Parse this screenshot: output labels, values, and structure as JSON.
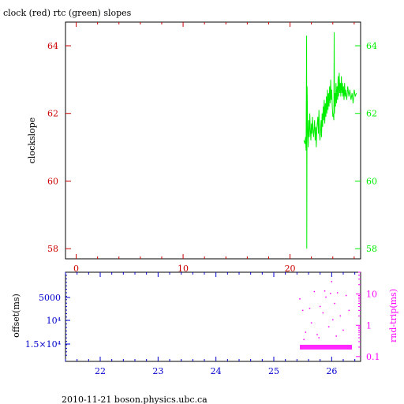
{
  "title": "clock (red) rtc (green) slopes",
  "footer": "2010-11-21 boson.physics.ubc.ca",
  "colors": {
    "frame": "#000000",
    "clock_axis": "#cc0000",
    "rtc_axis": "#00ee00",
    "offset_axis": "#0000cc",
    "rndtrip_axis": "#ff00ff",
    "rtc_series": "#00ee00",
    "rndtrip_points": "#ff00ff"
  },
  "chart_data": [
    {
      "type": "line",
      "title": "clock (red) rtc (green) slopes",
      "ylabel": "clockslope",
      "xlim": [
        -1,
        26.6
      ],
      "ylim": [
        57.7,
        64.7
      ],
      "x_ticks": [
        0,
        10,
        20
      ],
      "x_minor_step": 2,
      "y_ticks_left": [
        58,
        60,
        62,
        64
      ],
      "y_ticks_right": [
        58,
        60,
        62,
        64
      ],
      "grid": false,
      "series": [
        {
          "name": "rtc",
          "points": [
            [
              21.3,
              61.2
            ],
            [
              21.4,
              61.1
            ],
            [
              21.45,
              61.3
            ],
            [
              21.5,
              60.9
            ],
            [
              21.55,
              64.3
            ],
            [
              21.57,
              58.0
            ],
            [
              21.6,
              62.8
            ],
            [
              21.65,
              61.6
            ],
            [
              21.7,
              61.0
            ],
            [
              21.75,
              61.8
            ],
            [
              21.8,
              61.3
            ],
            [
              21.85,
              62.0
            ],
            [
              21.9,
              61.5
            ],
            [
              21.95,
              61.2
            ],
            [
              22.0,
              61.7
            ],
            [
              22.05,
              61.4
            ],
            [
              22.1,
              61.9
            ],
            [
              22.15,
              61.5
            ],
            [
              22.2,
              61.3
            ],
            [
              22.3,
              61.8
            ],
            [
              22.35,
              61.2
            ],
            [
              22.4,
              61.6
            ],
            [
              22.45,
              61.0
            ],
            [
              22.5,
              61.5
            ],
            [
              22.6,
              61.9
            ],
            [
              22.65,
              61.4
            ],
            [
              22.7,
              62.1
            ],
            [
              22.75,
              61.5
            ],
            [
              22.8,
              61.2
            ],
            [
              22.9,
              61.8
            ],
            [
              22.95,
              61.3
            ],
            [
              23.0,
              62.0
            ],
            [
              23.05,
              61.6
            ],
            [
              23.1,
              62.2
            ],
            [
              23.15,
              61.8
            ],
            [
              23.2,
              62.4
            ],
            [
              23.25,
              61.7
            ],
            [
              23.3,
              62.3
            ],
            [
              23.35,
              61.9
            ],
            [
              23.4,
              62.5
            ],
            [
              23.45,
              62.0
            ],
            [
              23.5,
              62.7
            ],
            [
              23.55,
              62.1
            ],
            [
              23.6,
              62.6
            ],
            [
              23.65,
              62.2
            ],
            [
              23.7,
              62.8
            ],
            [
              23.75,
              62.3
            ],
            [
              23.8,
              63.0
            ],
            [
              23.85,
              62.4
            ],
            [
              23.9,
              62.7
            ],
            [
              23.95,
              62.2
            ],
            [
              24.0,
              61.9
            ],
            [
              24.05,
              62.0
            ],
            [
              24.1,
              61.8
            ],
            [
              24.13,
              64.4
            ],
            [
              24.16,
              62.0
            ],
            [
              24.2,
              62.6
            ],
            [
              24.25,
              62.2
            ],
            [
              24.3,
              62.9
            ],
            [
              24.35,
              62.3
            ],
            [
              24.4,
              62.8
            ],
            [
              24.45,
              62.4
            ],
            [
              24.5,
              63.1
            ],
            [
              24.55,
              62.5
            ],
            [
              24.6,
              63.2
            ],
            [
              24.65,
              62.6
            ],
            [
              24.7,
              62.9
            ],
            [
              24.75,
              62.5
            ],
            [
              24.8,
              63.1
            ],
            [
              24.85,
              62.6
            ],
            [
              24.9,
              62.9
            ],
            [
              24.95,
              62.5
            ],
            [
              25.0,
              62.8
            ],
            [
              25.05,
              62.4
            ],
            [
              25.1,
              62.9
            ],
            [
              25.15,
              62.5
            ],
            [
              25.2,
              62.7
            ],
            [
              25.3,
              62.4
            ],
            [
              25.4,
              62.8
            ],
            [
              25.5,
              62.5
            ],
            [
              25.6,
              62.7
            ],
            [
              25.7,
              62.4
            ],
            [
              25.8,
              62.6
            ],
            [
              25.9,
              62.3
            ],
            [
              26.0,
              62.7
            ],
            [
              26.1,
              62.5
            ],
            [
              26.2,
              62.6
            ]
          ]
        }
      ]
    },
    {
      "type": "scatter",
      "ylabel_left": "offset(ms)",
      "ylabel_right": "rnd-trip(ms)",
      "xlim": [
        21.4,
        26.5
      ],
      "x_ticks": [
        22,
        23,
        24,
        25,
        26
      ],
      "x_minor_step": 0.2,
      "y_ticks_left": [
        "5000",
        "10⁴",
        "1.5×10⁴"
      ],
      "y_ticks_right": [
        "10",
        "1",
        "0.1"
      ],
      "y_right_scale": "log",
      "y_right_lim": [
        0.07,
        50
      ],
      "y_right_tick_values": [
        10,
        1,
        0.1
      ],
      "series": [
        {
          "name": "rnd-trip",
          "band": {
            "x_start": 25.45,
            "x_end": 26.35,
            "y": 0.2
          },
          "scattered_points": [
            [
              25.45,
              7.0
            ],
            [
              25.5,
              3.0
            ],
            [
              25.55,
              0.6
            ],
            [
              25.62,
              3.5
            ],
            [
              25.65,
              1.2
            ],
            [
              25.7,
              12.0
            ],
            [
              25.75,
              0.5
            ],
            [
              25.8,
              4.0
            ],
            [
              25.85,
              2.5
            ],
            [
              25.9,
              8.0
            ],
            [
              25.95,
              0.9
            ],
            [
              26.0,
              25.0
            ],
            [
              26.02,
              1.5
            ],
            [
              26.05,
              5.0
            ],
            [
              26.1,
              11.0
            ],
            [
              26.15,
              2.0
            ],
            [
              26.2,
              0.7
            ],
            [
              26.25,
              9.0
            ],
            [
              26.3,
              3.0
            ],
            [
              25.52,
              0.35
            ],
            [
              25.78,
              0.4
            ],
            [
              26.08,
              0.45
            ],
            [
              25.88,
              12.5
            ],
            [
              25.98,
              10.5
            ]
          ]
        }
      ]
    }
  ]
}
